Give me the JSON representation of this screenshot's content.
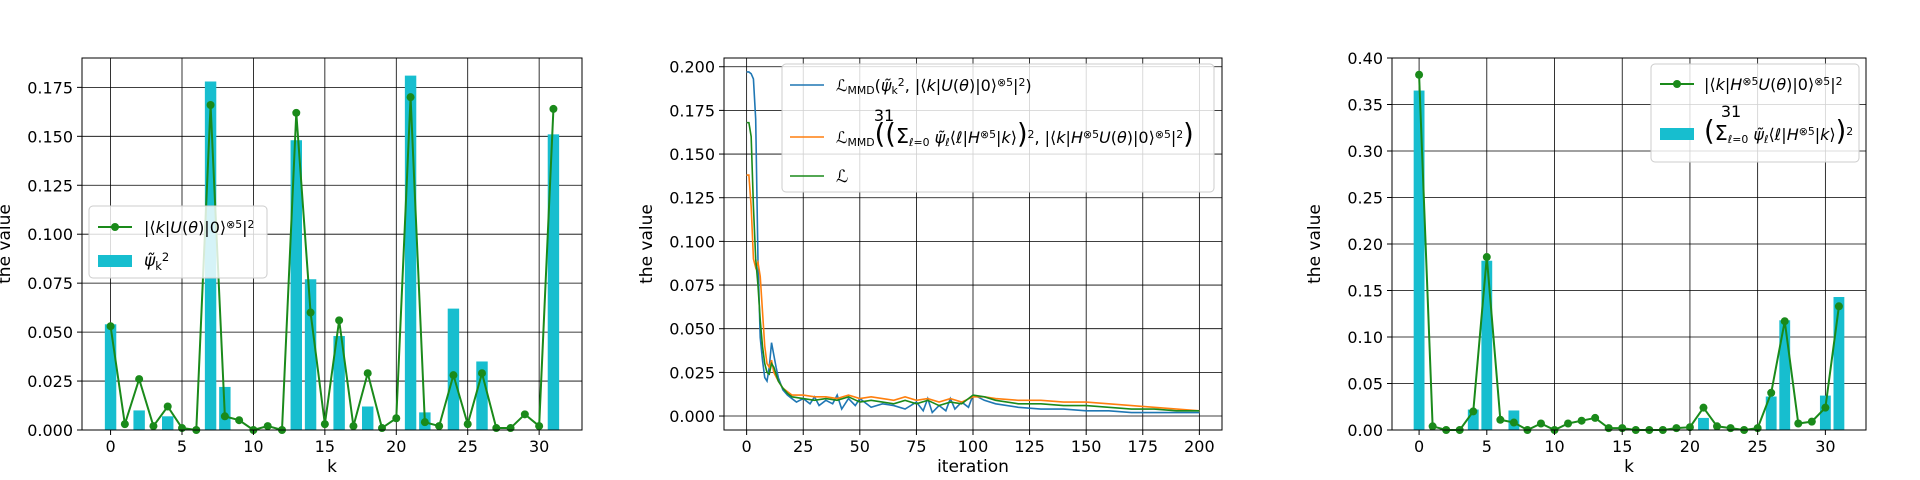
{
  "colors": {
    "bar": "#17becf",
    "green": "#1a8a1a",
    "blue": "#1f77b4",
    "orange": "#ff7f0e",
    "grid": "#000000"
  },
  "chart_data": [
    {
      "type": "bar",
      "xlabel": "k",
      "ylabel": "the value",
      "xlim": [
        -2,
        33
      ],
      "ylim": [
        0,
        0.19
      ],
      "xticks": [
        0,
        5,
        10,
        15,
        20,
        25,
        30
      ],
      "yticks": [
        0.0,
        0.025,
        0.05,
        0.075,
        0.1,
        0.125,
        0.15,
        0.175
      ],
      "ytick_labels": [
        "0.000",
        "0.025",
        "0.050",
        "0.075",
        "0.100",
        "0.125",
        "0.150",
        "0.175"
      ],
      "grid": true,
      "legend_loc": "center left",
      "legend": [
        "|⟨k|U(θ)|0⟩⊗5|²",
        "ψ̃k²"
      ],
      "x": [
        0,
        1,
        2,
        3,
        4,
        5,
        6,
        7,
        8,
        9,
        10,
        11,
        12,
        13,
        14,
        15,
        16,
        17,
        18,
        19,
        20,
        21,
        22,
        23,
        24,
        25,
        26,
        27,
        28,
        29,
        30,
        31
      ],
      "bars": [
        0.054,
        0.0,
        0.01,
        0.0,
        0.007,
        0.0,
        0.0,
        0.178,
        0.022,
        0.0,
        0.0,
        0.0,
        0.0,
        0.148,
        0.077,
        0.0,
        0.048,
        0.0,
        0.012,
        0.0,
        0.0,
        0.181,
        0.009,
        0.0,
        0.062,
        0.0,
        0.035,
        0.0,
        0.0,
        0.0,
        0.0,
        0.151
      ],
      "line": [
        0.053,
        0.003,
        0.026,
        0.002,
        0.012,
        0.001,
        0.0,
        0.166,
        0.007,
        0.005,
        0.0,
        0.002,
        0.0,
        0.162,
        0.06,
        0.003,
        0.056,
        0.002,
        0.029,
        0.001,
        0.006,
        0.17,
        0.004,
        0.002,
        0.028,
        0.003,
        0.029,
        0.001,
        0.001,
        0.008,
        0.002,
        0.164
      ]
    },
    {
      "type": "line",
      "xlabel": "iteration",
      "ylabel": "the value",
      "xlim": [
        -10,
        210
      ],
      "ylim": [
        -0.008,
        0.205
      ],
      "xticks": [
        0,
        25,
        50,
        75,
        100,
        125,
        150,
        175,
        200
      ],
      "yticks": [
        0.0,
        0.025,
        0.05,
        0.075,
        0.1,
        0.125,
        0.15,
        0.175,
        0.2
      ],
      "ytick_labels": [
        "0.000",
        "0.025",
        "0.050",
        "0.075",
        "0.100",
        "0.125",
        "0.150",
        "0.175",
        "0.200"
      ],
      "grid": true,
      "legend_loc": "upper right",
      "series": [
        {
          "name": "ℒMMD(ψ̃k², |⟨k|U(θ)|0⟩⊗5|²)",
          "x": [
            0,
            1,
            2,
            3,
            4,
            5,
            6,
            7,
            8,
            9,
            10,
            11,
            12,
            13,
            14,
            16,
            18,
            20,
            22,
            25,
            28,
            30,
            32,
            35,
            38,
            40,
            42,
            45,
            48,
            50,
            55,
            60,
            65,
            70,
            75,
            78,
            80,
            82,
            85,
            88,
            90,
            92,
            95,
            98,
            100,
            102,
            105,
            110,
            120,
            130,
            140,
            150,
            160,
            170,
            180,
            190,
            200
          ],
          "values": [
            0.197,
            0.197,
            0.196,
            0.193,
            0.17,
            0.09,
            0.045,
            0.032,
            0.022,
            0.02,
            0.028,
            0.042,
            0.035,
            0.028,
            0.022,
            0.015,
            0.012,
            0.01,
            0.008,
            0.01,
            0.007,
            0.011,
            0.006,
            0.009,
            0.007,
            0.012,
            0.004,
            0.01,
            0.006,
            0.01,
            0.005,
            0.007,
            0.006,
            0.004,
            0.008,
            0.003,
            0.01,
            0.002,
            0.006,
            0.003,
            0.01,
            0.004,
            0.008,
            0.005,
            0.012,
            0.011,
            0.009,
            0.007,
            0.005,
            0.004,
            0.004,
            0.003,
            0.003,
            0.002,
            0.002,
            0.002,
            0.002
          ]
        },
        {
          "name": "ℒMMD((Σℓ=0..31 ψ̃ℓ⟨ℓ|H⊗5|k⟩)², |⟨k|H⊗5U(θ)|0⟩⊗5|²)",
          "x": [
            0,
            1,
            2,
            3,
            4,
            5,
            6,
            7,
            8,
            9,
            10,
            11,
            12,
            14,
            16,
            18,
            20,
            25,
            30,
            35,
            40,
            45,
            50,
            55,
            60,
            65,
            70,
            75,
            80,
            85,
            90,
            95,
            100,
            105,
            110,
            120,
            130,
            140,
            150,
            160,
            170,
            180,
            190,
            200
          ],
          "values": [
            0.138,
            0.138,
            0.12,
            0.09,
            0.085,
            0.088,
            0.08,
            0.06,
            0.04,
            0.03,
            0.028,
            0.032,
            0.025,
            0.02,
            0.016,
            0.014,
            0.012,
            0.012,
            0.011,
            0.011,
            0.01,
            0.012,
            0.01,
            0.011,
            0.01,
            0.009,
            0.011,
            0.009,
            0.01,
            0.008,
            0.01,
            0.008,
            0.011,
            0.011,
            0.01,
            0.009,
            0.009,
            0.008,
            0.008,
            0.007,
            0.006,
            0.005,
            0.004,
            0.003
          ]
        },
        {
          "name": "ℒ",
          "x": [
            0,
            1,
            2,
            3,
            4,
            5,
            6,
            7,
            8,
            9,
            10,
            11,
            12,
            14,
            16,
            18,
            20,
            25,
            30,
            35,
            40,
            45,
            50,
            55,
            60,
            65,
            70,
            75,
            80,
            85,
            90,
            95,
            100,
            105,
            110,
            120,
            130,
            140,
            150,
            160,
            170,
            180,
            190,
            200
          ],
          "values": [
            0.168,
            0.168,
            0.16,
            0.12,
            0.09,
            0.075,
            0.055,
            0.04,
            0.03,
            0.025,
            0.024,
            0.03,
            0.028,
            0.02,
            0.016,
            0.013,
            0.011,
            0.01,
            0.009,
            0.01,
            0.009,
            0.011,
            0.008,
            0.009,
            0.008,
            0.007,
            0.009,
            0.007,
            0.009,
            0.006,
            0.008,
            0.007,
            0.012,
            0.011,
            0.009,
            0.007,
            0.007,
            0.006,
            0.006,
            0.005,
            0.004,
            0.004,
            0.003,
            0.003
          ]
        }
      ]
    },
    {
      "type": "bar",
      "xlabel": "k",
      "ylabel": "the value",
      "xlim": [
        -2,
        33
      ],
      "ylim": [
        0,
        0.4
      ],
      "xticks": [
        0,
        5,
        10,
        15,
        20,
        25,
        30
      ],
      "yticks": [
        0.0,
        0.05,
        0.1,
        0.15,
        0.2,
        0.25,
        0.3,
        0.35,
        0.4
      ],
      "ytick_labels": [
        "0.00",
        "0.05",
        "0.10",
        "0.15",
        "0.20",
        "0.25",
        "0.30",
        "0.35",
        "0.40"
      ],
      "grid": true,
      "legend_loc": "upper right",
      "legend": [
        "|⟨k|H⊗5U(θ)|0⟩⊗5|²",
        "(Σℓ=0..31 ψ̃ℓ⟨ℓ|H⊗5|k⟩)²"
      ],
      "x": [
        0,
        1,
        2,
        3,
        4,
        5,
        6,
        7,
        8,
        9,
        10,
        11,
        12,
        13,
        14,
        15,
        16,
        17,
        18,
        19,
        20,
        21,
        22,
        23,
        24,
        25,
        26,
        27,
        28,
        29,
        30,
        31
      ],
      "bars": [
        0.365,
        0.0,
        0.0,
        0.0,
        0.022,
        0.182,
        0.0,
        0.021,
        0.0,
        0.0,
        0.0,
        0.0,
        0.0,
        0.0,
        0.0,
        0.0,
        0.0,
        0.0,
        0.0,
        0.0,
        0.0,
        0.013,
        0.0,
        0.0,
        0.0,
        0.0,
        0.036,
        0.118,
        0.0,
        0.0,
        0.037,
        0.143
      ],
      "line": [
        0.382,
        0.004,
        0.0,
        0.0,
        0.02,
        0.186,
        0.011,
        0.008,
        0.0,
        0.007,
        0.0,
        0.007,
        0.01,
        0.013,
        0.002,
        0.002,
        0.0,
        0.0,
        0.0,
        0.002,
        0.003,
        0.024,
        0.004,
        0.002,
        0.0,
        0.002,
        0.04,
        0.117,
        0.007,
        0.009,
        0.024,
        0.133
      ]
    }
  ]
}
